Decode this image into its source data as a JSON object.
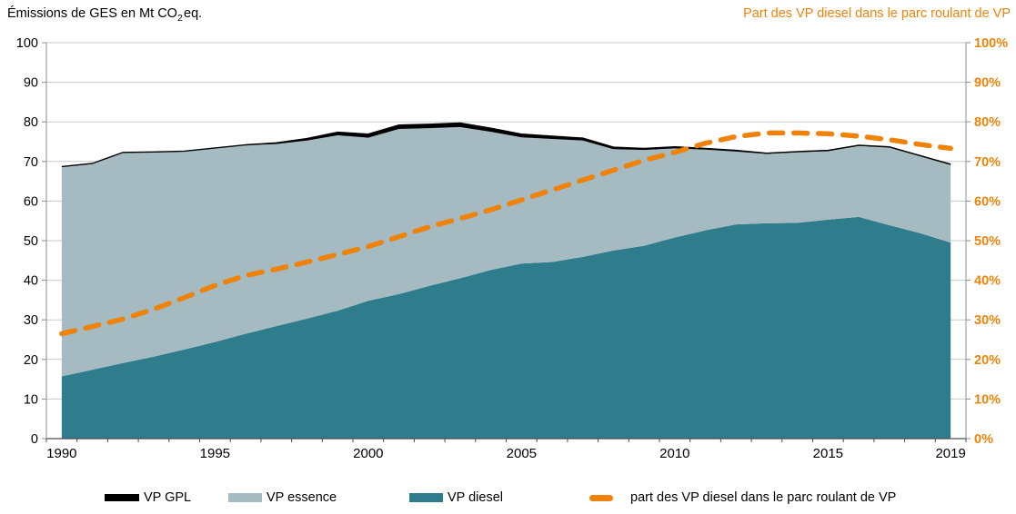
{
  "header": {
    "left_title": {
      "pre": "Émissions de GES en Mt CO",
      "sub": "2",
      "post": "eq."
    },
    "right_title": "Part des VP diesel dans le parc roulant de VP",
    "right_title_color": "#ef830a"
  },
  "colors": {
    "diesel": "#2f7d8c",
    "essence": "#a5bac1",
    "gpl": "#000000",
    "share_line": "#ef830a",
    "grid": "#c9c9c9",
    "axis": "#8c8c8c",
    "bottom_axis": "#4d4d4d",
    "text": "#000000"
  },
  "legend": {
    "items": [
      {
        "label": "VP GPL",
        "swatch": "gpl",
        "color": "#000000"
      },
      {
        "label": "VP essence",
        "swatch": "area",
        "color": "#a5bac1"
      },
      {
        "label": "VP diesel",
        "swatch": "area",
        "color": "#2f7d8c"
      },
      {
        "label": "part des VP diesel dans le parc roulant de VP",
        "swatch": "dash",
        "color": "#ef830a"
      }
    ]
  },
  "chart_data": {
    "type": "area",
    "subtype": "stacked-areas-plus-dashed-line",
    "title": "Émissions de GES en Mt CO2eq. / Part des VP diesel dans le parc roulant de VP",
    "x": [
      1990,
      1991,
      1992,
      1993,
      1994,
      1995,
      1996,
      1997,
      1998,
      1999,
      2000,
      2001,
      2002,
      2003,
      2004,
      2005,
      2006,
      2007,
      2008,
      2009,
      2010,
      2011,
      2012,
      2013,
      2014,
      2015,
      2016,
      2017,
      2018,
      2019
    ],
    "series": [
      {
        "name": "VP diesel",
        "type": "area",
        "axis": "left",
        "color": "#2f7d8c",
        "values": [
          15.7,
          17.4,
          19.1,
          20.7,
          22.5,
          24.4,
          26.5,
          28.4,
          30.3,
          32.3,
          34.8,
          36.5,
          38.6,
          40.5,
          42.6,
          44.2,
          44.6,
          45.9,
          47.5,
          48.7,
          50.8,
          52.6,
          54.1,
          54.4,
          54.5,
          55.3,
          56.0,
          53.9,
          51.9,
          49.5
        ]
      },
      {
        "name": "VP essence",
        "type": "area",
        "axis": "left",
        "color": "#a5bac1",
        "values": [
          52.9,
          52.0,
          53.1,
          51.6,
          50.0,
          48.9,
          47.6,
          46.0,
          45.0,
          44.3,
          41.2,
          41.7,
          39.8,
          38.2,
          34.9,
          31.9,
          31.1,
          29.4,
          25.6,
          24.2,
          22.5,
          20.4,
          18.4,
          17.5,
          17.8,
          17.3,
          17.9,
          19.6,
          19.4,
          19.6
        ]
      },
      {
        "name": "VP GPL",
        "type": "area",
        "axis": "left",
        "color": "#000000",
        "values": [
          0.1,
          0.1,
          0.1,
          0.1,
          0.1,
          0.1,
          0.1,
          0.3,
          0.5,
          0.8,
          0.9,
          1.0,
          1.0,
          1.0,
          0.9,
          0.8,
          0.7,
          0.6,
          0.5,
          0.4,
          0.4,
          0.3,
          0.3,
          0.2,
          0.2,
          0.2,
          0.2,
          0.2,
          0.2,
          0.2
        ]
      },
      {
        "name": "part des VP diesel dans le parc roulant de VP",
        "type": "dashed-line",
        "axis": "right",
        "color": "#ef830a",
        "values": [
          26.5,
          28.3,
          30.2,
          32.7,
          35.6,
          38.7,
          41.2,
          42.8,
          44.6,
          46.5,
          48.5,
          51.0,
          53.5,
          55.6,
          57.8,
          60.3,
          62.8,
          65.3,
          67.8,
          70.3,
          72.3,
          74.6,
          76.3,
          77.2,
          77.2,
          77.0,
          76.4,
          75.5,
          74.3,
          73.3
        ]
      }
    ],
    "left_axis": {
      "min": 0,
      "max": 100,
      "step": 10,
      "tick_labels": [
        "0",
        "10",
        "20",
        "30",
        "40",
        "50",
        "60",
        "70",
        "80",
        "90",
        "100"
      ]
    },
    "right_axis": {
      "min": 0,
      "max": 100,
      "step": 10,
      "color": "#ef830a",
      "tick_labels": [
        "0%",
        "10%",
        "20%",
        "30%",
        "40%",
        "50%",
        "60%",
        "70%",
        "80%",
        "90%",
        "100%"
      ]
    },
    "x_tick_labels": [
      {
        "label": "1990",
        "index": 0
      },
      {
        "label": "1995",
        "index": 5
      },
      {
        "label": "2000",
        "index": 10
      },
      {
        "label": "2005",
        "index": 15
      },
      {
        "label": "2010",
        "index": 20
      },
      {
        "label": "2015",
        "index": 25
      },
      {
        "label": "2019",
        "index": 29
      }
    ],
    "grid": true,
    "legend_position": "bottom"
  }
}
